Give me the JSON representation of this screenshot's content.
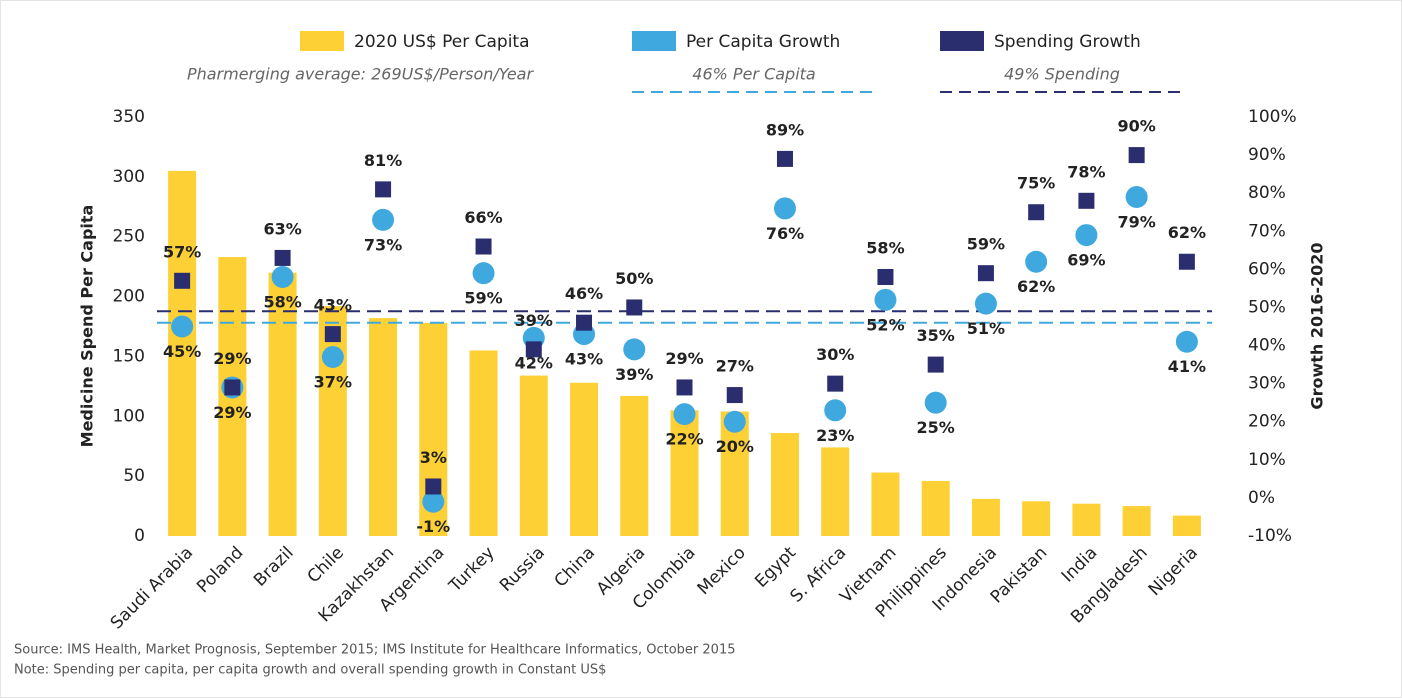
{
  "chart_data": {
    "type": "bar",
    "categories": [
      "Saudi Arabia",
      "Poland",
      "Brazil",
      "Chile",
      "Kazakhstan",
      "Argentina",
      "Turkey",
      "Russia",
      "China",
      "Algeria",
      "Colombia",
      "Mexico",
      "Egypt",
      "S. Africa",
      "Vietnam",
      "Philippines",
      "Indonesia",
      "Pakistan",
      "India",
      "Bangladesh",
      "Nigeria"
    ],
    "series": [
      {
        "name": "2020 US$ Per Capita",
        "color": "#fdd036",
        "type": "bar",
        "values": [
          305,
          233,
          220,
          192,
          182,
          178,
          155,
          134,
          128,
          117,
          105,
          104,
          86,
          74,
          53,
          46,
          31,
          29,
          27,
          25,
          17
        ]
      },
      {
        "name": "Per Capita Growth",
        "color": "#3fa9df",
        "type": "circle",
        "axis": "y2",
        "values": [
          45,
          29,
          58,
          37,
          73,
          -1,
          59,
          42,
          43,
          39,
          22,
          20,
          76,
          23,
          52,
          25,
          51,
          62,
          69,
          79,
          41
        ],
        "value_labels": [
          "45%",
          "29%",
          "58%",
          "37%",
          "73%",
          "-1%",
          "59%",
          "42%",
          "43%",
          "39%",
          "22%",
          "20%",
          "76%",
          "23%",
          "52%",
          "25%",
          "51%",
          "62%",
          "69%",
          "79%",
          "41%"
        ]
      },
      {
        "name": "Spending Growth",
        "color": "#2a2d6e",
        "type": "square",
        "axis": "y2",
        "values": [
          57,
          29,
          63,
          43,
          81,
          3,
          66,
          39,
          46,
          50,
          29,
          27,
          89,
          30,
          58,
          35,
          59,
          75,
          78,
          90,
          62
        ],
        "value_labels": [
          "57%",
          "29%",
          "63%",
          "43%",
          "81%",
          "3%",
          "66%",
          "39%",
          "46%",
          "50%",
          "29%",
          "27%",
          "89%",
          "30%",
          "58%",
          "35%",
          "59%",
          "75%",
          "78%",
          "90%",
          "62%"
        ]
      }
    ],
    "reference_lines": [
      {
        "value": 46,
        "label": "46% Per Capita",
        "color": "#3fa9df",
        "axis": "y2"
      },
      {
        "value": 49,
        "label": "49% Spending",
        "color": "#2a2d6e",
        "axis": "y2"
      }
    ],
    "average_note": "Pharmerging average: 269US$/Person/Year",
    "ylabel": "Medicine Spend Per Capita",
    "y2label": "Growth 2016-2020",
    "ylim": [
      0,
      350
    ],
    "yticks": [
      0,
      50,
      100,
      150,
      200,
      250,
      300,
      350
    ],
    "y2lim": [
      -10,
      100
    ],
    "y2ticks": [
      {
        "value": -10,
        "label": "-10%"
      },
      {
        "value": 0,
        "label": "0%"
      },
      {
        "value": 10,
        "label": "10%"
      },
      {
        "value": 20,
        "label": "20%"
      },
      {
        "value": 30,
        "label": "30%"
      },
      {
        "value": 40,
        "label": "40%"
      },
      {
        "value": 50,
        "label": "50%"
      },
      {
        "value": 60,
        "label": "60%"
      },
      {
        "value": 70,
        "label": "70%"
      },
      {
        "value": 80,
        "label": "80%"
      },
      {
        "value": 90,
        "label": "90%"
      },
      {
        "value": 100,
        "label": "100%"
      }
    ],
    "notes": [
      "Source: IMS Health,  Market Prognosis, September 2015; IMS Institute for Healthcare Informatics, October 2015",
      "Note: Spending per capita, per capita growth and overall spending growth in Constant US$"
    ]
  }
}
